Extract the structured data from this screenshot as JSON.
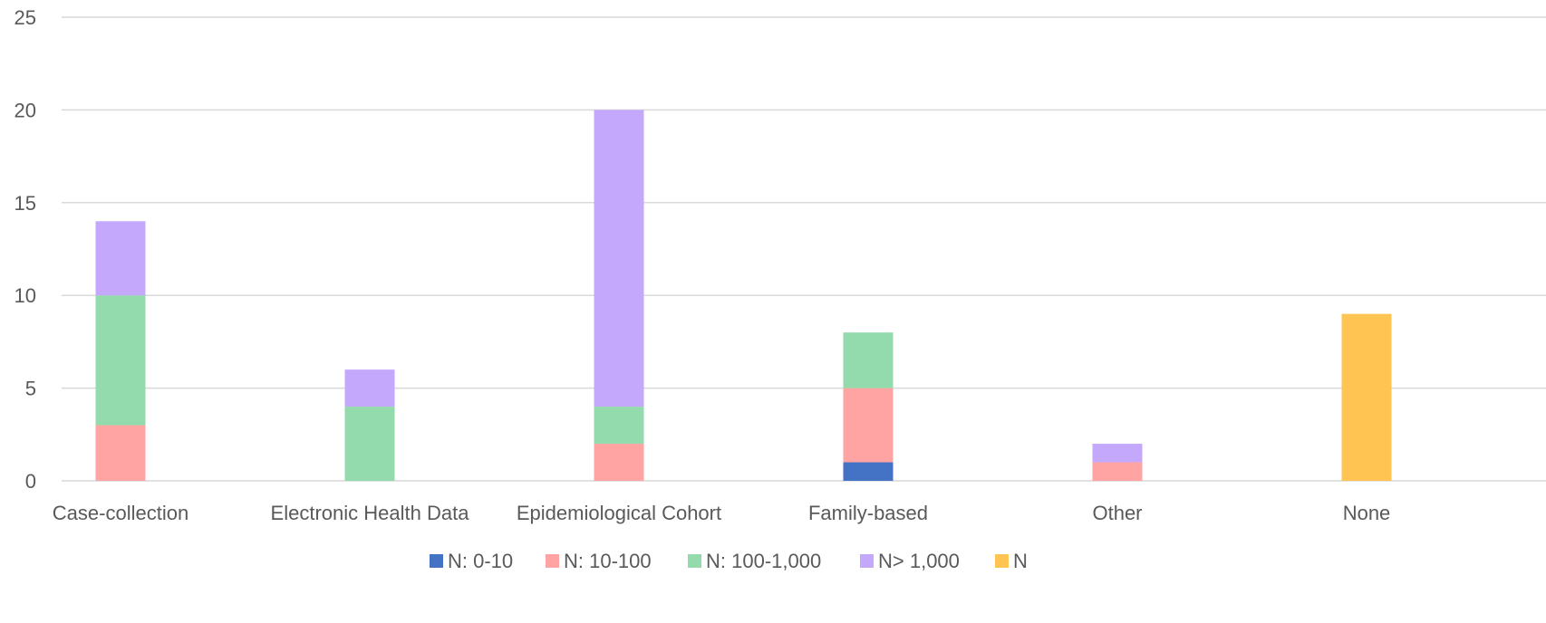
{
  "chart_data": {
    "type": "bar",
    "stacked": true,
    "categories": [
      "Case-collection",
      "Electronic Health Data",
      "Epidemiological Cohort",
      "Family-based",
      "Other",
      "None"
    ],
    "series": [
      {
        "name": "N: 0-10",
        "color": "#4472c4",
        "values": [
          0,
          0,
          0,
          1,
          0,
          0
        ]
      },
      {
        "name": "N: 10-100",
        "color": "#ffa3a3",
        "values": [
          3,
          0,
          2,
          4,
          1,
          0
        ]
      },
      {
        "name": "N: 100-1,000",
        "color": "#93dbac",
        "values": [
          7,
          4,
          2,
          3,
          0,
          0
        ]
      },
      {
        "name": "N> 1,000",
        "color": "#c4a8fc",
        "values": [
          4,
          2,
          16,
          0,
          1,
          0
        ]
      },
      {
        "name": "N",
        "color": "#ffc452",
        "values": [
          0,
          0,
          0,
          0,
          0,
          9
        ]
      }
    ],
    "ylim": [
      0,
      25
    ],
    "yticks": [
      0,
      5,
      10,
      15,
      20,
      25
    ],
    "grid": true,
    "legend_position": "bottom"
  }
}
